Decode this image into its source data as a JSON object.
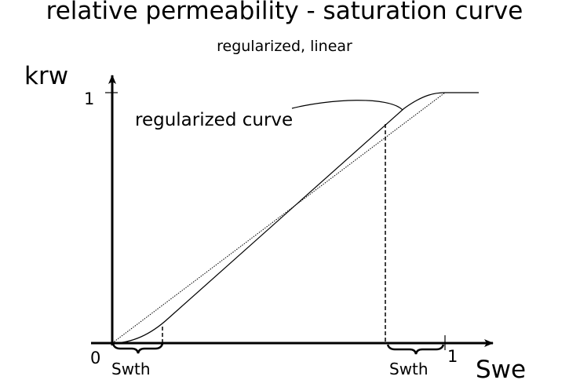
{
  "title": "relative permeability - saturation curve",
  "subtitle": "regularized, linear",
  "axes": {
    "y_label": "krw",
    "x_label": "Swe",
    "y_tick": "1",
    "x_tick": "1",
    "origin": "0"
  },
  "annotations": {
    "curve_label": "regularized curve",
    "swth_left": "Swth",
    "swth_right": "Swth"
  },
  "colors": {
    "line": "#000000",
    "background": "#ffffff"
  }
}
